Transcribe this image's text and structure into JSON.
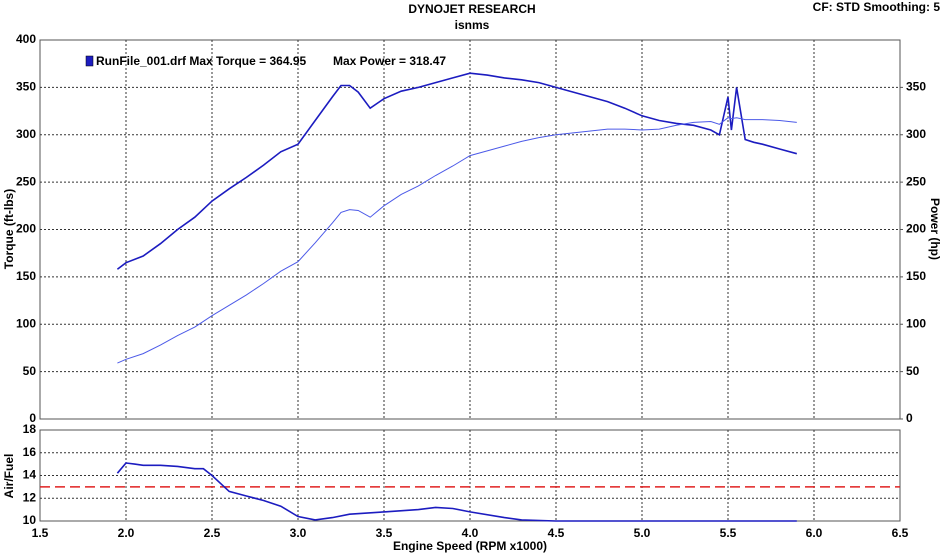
{
  "chart_data": [
    {
      "type": "line",
      "title": "DYNOJET RESEARCH",
      "subtitle": "isnms",
      "annotations": [
        "CF: STD  Smoothing: 5"
      ],
      "legend": [
        "RunFile_001.drf Max Torque = 364.95",
        "Max Power = 318.47"
      ],
      "ylabel": "Torque (ft-lbs)",
      "y2label": "Power (hp)",
      "xlim": [
        1.5,
        6.5
      ],
      "ylim": [
        0,
        400
      ],
      "yticks": [
        0,
        50,
        100,
        150,
        200,
        250,
        300,
        350,
        400
      ],
      "y2lim": [
        0,
        400
      ],
      "y2ticks": [
        0,
        50,
        100,
        150,
        200,
        250,
        300,
        350
      ],
      "grid": true,
      "x": [
        1.95,
        2.0,
        2.1,
        2.2,
        2.3,
        2.4,
        2.5,
        2.6,
        2.7,
        2.8,
        2.9,
        3.0,
        3.1,
        3.2,
        3.25,
        3.3,
        3.35,
        3.42,
        3.5,
        3.6,
        3.7,
        3.8,
        3.9,
        4.0,
        4.1,
        4.2,
        4.3,
        4.4,
        4.5,
        4.6,
        4.7,
        4.8,
        4.9,
        5.0,
        5.1,
        5.2,
        5.3,
        5.4,
        5.45,
        5.5,
        5.52,
        5.55,
        5.6,
        5.65,
        5.7,
        5.8,
        5.9
      ],
      "series": [
        {
          "color": "#1c1cc0",
          "values": [
            158,
            165,
            172,
            185,
            200,
            213,
            230,
            243,
            255,
            268,
            282,
            290,
            315,
            340,
            352,
            352,
            345,
            328,
            338,
            346,
            350,
            355,
            360,
            365,
            363,
            360,
            358,
            355,
            350,
            345,
            340,
            335,
            328,
            320,
            315,
            312,
            310,
            305,
            300,
            340,
            305,
            350,
            295,
            292,
            290,
            285,
            280
          ]
        },
        {
          "color": "#4c5ae8",
          "axis": "y2",
          "values": [
            59,
            63,
            69,
            78,
            88,
            97,
            109,
            120,
            131,
            143,
            156,
            166,
            186,
            207,
            218,
            221,
            220,
            213,
            225,
            237,
            246,
            257,
            267,
            278,
            283,
            288,
            293,
            297,
            300,
            302,
            304,
            306,
            306,
            305,
            306,
            310,
            313,
            314,
            311,
            318,
            317,
            318,
            316,
            316,
            316,
            315,
            313
          ]
        }
      ]
    },
    {
      "type": "line",
      "ylabel": "Air/Fuel",
      "xlabel": "Engine Speed (RPM x1000)",
      "xlim": [
        1.5,
        6.5
      ],
      "xticks": [
        {
          "value": 1.5,
          "label": "1.5"
        },
        {
          "value": 2,
          "label": "2.0"
        },
        {
          "value": 2.5,
          "label": "2.5"
        },
        {
          "value": 3,
          "label": "3.0"
        },
        {
          "value": 3.5,
          "label": "3.5"
        },
        {
          "value": 4,
          "label": "4.0"
        },
        {
          "value": 4.5,
          "label": "4.5"
        },
        {
          "value": 5,
          "label": "5.0"
        },
        {
          "value": 5.5,
          "label": "5.5"
        },
        {
          "value": 6,
          "label": "6.0"
        },
        {
          "value": 6.5,
          "label": "6.5"
        }
      ],
      "ylim": [
        10,
        18
      ],
      "yticks": [
        10,
        12,
        14,
        16,
        18
      ],
      "grid": true,
      "reference_line": {
        "value": 13,
        "color": "#e02020"
      },
      "x": [
        1.95,
        2.0,
        2.05,
        2.1,
        2.2,
        2.3,
        2.4,
        2.45,
        2.5,
        2.6,
        2.7,
        2.8,
        2.9,
        3.0,
        3.1,
        3.2,
        3.3,
        3.5,
        3.7,
        3.8,
        3.9,
        4.0,
        4.2,
        4.3,
        4.5,
        5.0,
        5.5,
        5.9
      ],
      "series": [
        {
          "color": "#1c1cc0",
          "values": [
            14.2,
            15.1,
            15.0,
            14.9,
            14.9,
            14.8,
            14.6,
            14.6,
            14.0,
            12.6,
            12.2,
            11.8,
            11.3,
            10.4,
            10.1,
            10.3,
            10.6,
            10.8,
            11.0,
            11.2,
            11.1,
            10.8,
            10.3,
            10.1,
            10.0,
            10.0,
            10.0,
            10.0
          ]
        }
      ]
    }
  ]
}
